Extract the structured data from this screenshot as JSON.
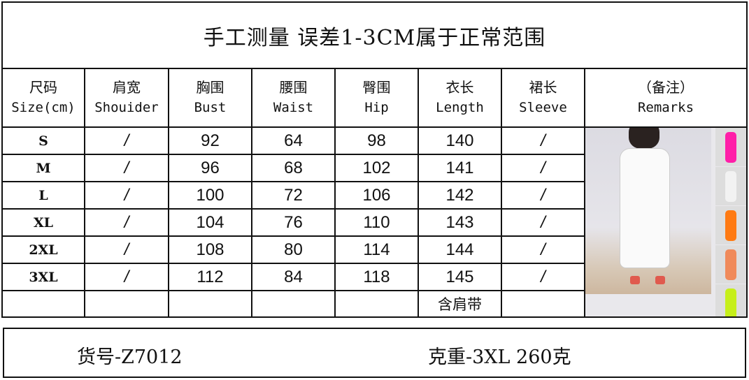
{
  "title": "手工测量 误差1-3CM属于正常范围",
  "headers": [
    {
      "cn": "尺码",
      "en": "Size(cm)"
    },
    {
      "cn": "肩宽",
      "en": "Shouider"
    },
    {
      "cn": "胸围",
      "en": "Bust"
    },
    {
      "cn": "腰围",
      "en": "Waist"
    },
    {
      "cn": "臀围",
      "en": "Hip"
    },
    {
      "cn": "衣长",
      "en": "Length"
    },
    {
      "cn": "裙长",
      "en": "Sleeve"
    },
    {
      "cn": "（备注）",
      "en": "Remarks"
    }
  ],
  "rows": [
    [
      "S",
      "/",
      "92",
      "64",
      "98",
      "140",
      "/"
    ],
    [
      "M",
      "/",
      "96",
      "68",
      "102",
      "141",
      "/"
    ],
    [
      "L",
      "/",
      "100",
      "72",
      "106",
      "142",
      "/"
    ],
    [
      "XL",
      "/",
      "104",
      "76",
      "110",
      "143",
      "/"
    ],
    [
      "2XL",
      "/",
      "108",
      "80",
      "114",
      "144",
      "/"
    ],
    [
      "3XL",
      "/",
      "112",
      "84",
      "118",
      "145",
      "/"
    ]
  ],
  "length_note": "含肩带",
  "photo": {
    "description_colors": [
      "#ff1fa8",
      "#f2f2f2",
      "#ff7a12",
      "#f08a5a",
      "#c6ef1a"
    ]
  },
  "footer": {
    "item_no": "货号-Z7012",
    "weight": "克重-3XL 260克"
  }
}
